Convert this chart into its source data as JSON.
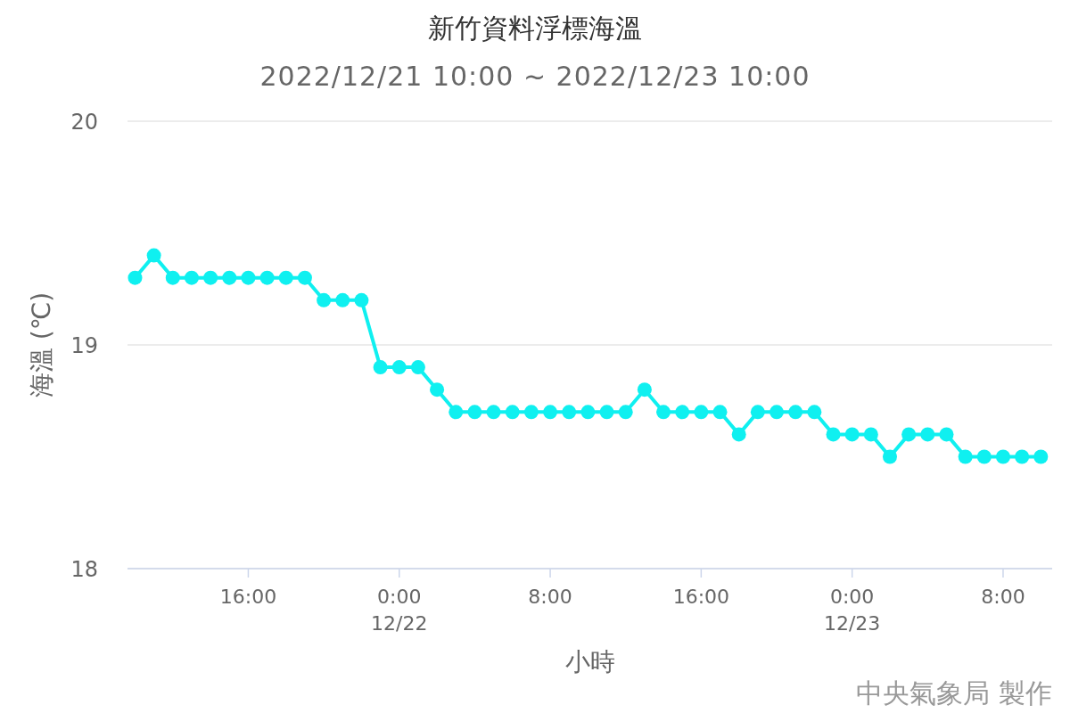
{
  "chart_data": {
    "type": "line",
    "title": "新竹資料浮標海溫",
    "subtitle": "2022/12/21 10:00 ~ 2022/12/23 10:00",
    "xlabel": "小時",
    "ylabel": "海溫 (℃)",
    "x": [
      "2022-12-21T10:00",
      "2022-12-21T11:00",
      "2022-12-21T12:00",
      "2022-12-21T13:00",
      "2022-12-21T14:00",
      "2022-12-21T15:00",
      "2022-12-21T16:00",
      "2022-12-21T17:00",
      "2022-12-21T18:00",
      "2022-12-21T19:00",
      "2022-12-21T20:00",
      "2022-12-21T21:00",
      "2022-12-21T22:00",
      "2022-12-21T23:00",
      "2022-12-22T00:00",
      "2022-12-22T01:00",
      "2022-12-22T02:00",
      "2022-12-22T03:00",
      "2022-12-22T04:00",
      "2022-12-22T05:00",
      "2022-12-22T06:00",
      "2022-12-22T07:00",
      "2022-12-22T08:00",
      "2022-12-22T09:00",
      "2022-12-22T10:00",
      "2022-12-22T11:00",
      "2022-12-22T12:00",
      "2022-12-22T13:00",
      "2022-12-22T14:00",
      "2022-12-22T15:00",
      "2022-12-22T16:00",
      "2022-12-22T17:00",
      "2022-12-22T18:00",
      "2022-12-22T19:00",
      "2022-12-22T20:00",
      "2022-12-22T21:00",
      "2022-12-22T22:00",
      "2022-12-22T23:00",
      "2022-12-23T00:00",
      "2022-12-23T01:00",
      "2022-12-23T02:00",
      "2022-12-23T03:00",
      "2022-12-23T04:00",
      "2022-12-23T05:00",
      "2022-12-23T06:00",
      "2022-12-23T07:00",
      "2022-12-23T08:00",
      "2022-12-23T09:00",
      "2022-12-23T10:00"
    ],
    "series": [
      {
        "color": "#0ff0f0",
        "values": [
          19.3,
          19.4,
          19.3,
          19.3,
          19.3,
          19.3,
          19.3,
          19.3,
          19.3,
          19.3,
          19.2,
          19.2,
          19.2,
          18.9,
          18.9,
          18.9,
          18.8,
          18.7,
          18.7,
          18.7,
          18.7,
          18.7,
          18.7,
          18.7,
          18.7,
          18.7,
          18.7,
          18.8,
          18.7,
          18.7,
          18.7,
          18.7,
          18.6,
          18.7,
          18.7,
          18.7,
          18.7,
          18.6,
          18.6,
          18.6,
          18.5,
          18.6,
          18.6,
          18.6,
          18.5,
          18.5,
          18.5,
          18.5,
          18.5
        ]
      }
    ],
    "xlim": [
      "2022-12-21T09:36",
      "2022-12-23T10:36"
    ],
    "xticks": [
      {
        "value": "2022-12-21T16:00",
        "label": "16:00"
      },
      {
        "value": "2022-12-22T00:00",
        "label": "0:00\n12/22"
      },
      {
        "value": "2022-12-22T08:00",
        "label": "8:00"
      },
      {
        "value": "2022-12-22T16:00",
        "label": "16:00"
      },
      {
        "value": "2022-12-23T00:00",
        "label": "0:00\n12/23"
      },
      {
        "value": "2022-12-23T08:00",
        "label": "8:00"
      }
    ],
    "ylim": [
      18,
      20
    ],
    "yticks": [
      18,
      19,
      20
    ],
    "grid": "y",
    "marker": "circle",
    "line_style": "solid",
    "annotations": [
      "中央氣象局 製作"
    ]
  }
}
